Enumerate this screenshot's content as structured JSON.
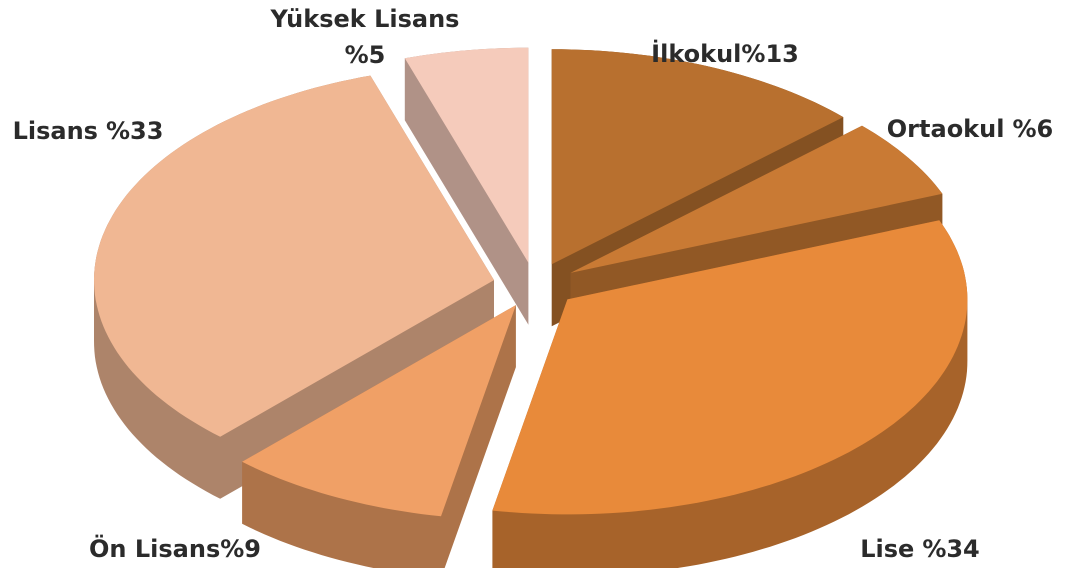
{
  "chart_data": {
    "type": "pie3d",
    "categories": [
      "İlkokul",
      "Ortaokul",
      "Lise",
      "Ön Lisans",
      "Lisans",
      "Yüksek Lisans"
    ],
    "values": [
      13,
      6,
      34,
      9,
      33,
      5
    ],
    "value_labels": [
      "%13",
      "%6",
      "%34",
      "%9",
      "%33",
      "%5"
    ],
    "colors": [
      "#b8702f",
      "#c97a34",
      "#e88a3a",
      "#f0a066",
      "#f0b793",
      "#f5cbbb"
    ]
  }
}
